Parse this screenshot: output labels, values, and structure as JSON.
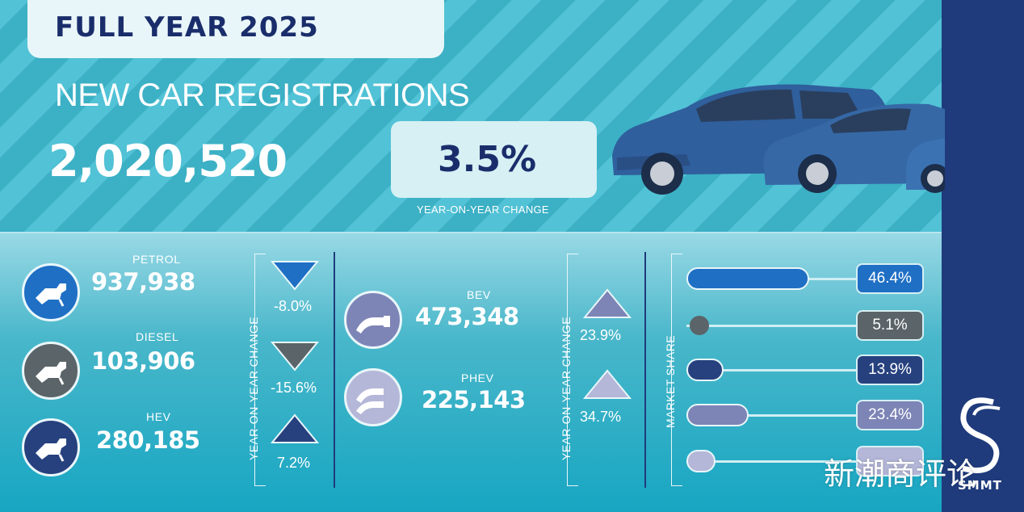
{
  "header": {
    "title": "FULL YEAR 2025",
    "subtitle": "NEW CAR REGISTRATIONS",
    "total": "2,020,520",
    "change": "3.5%",
    "change_caption": "YEAR-ON-YEAR CHANGE"
  },
  "fuel_left": [
    {
      "label": "PETROL",
      "value": "937,938",
      "change": "-8.0%",
      "direction": "down",
      "color": "#1f6fc4",
      "icon": "fuel-pump-icon"
    },
    {
      "label": "DIESEL",
      "value": "103,906",
      "change": "-15.6%",
      "direction": "down",
      "color": "#5b6468",
      "icon": "fuel-pump-icon"
    },
    {
      "label": "HEV",
      "value": "280,185",
      "change": "7.2%",
      "direction": "up",
      "color": "#27417f",
      "icon": "fuel-pump-icon"
    }
  ],
  "fuel_right": [
    {
      "label": "BEV",
      "value": "473,348",
      "change": "23.9%",
      "direction": "up",
      "color": "#7d84b6",
      "icon": "ev-plug-icon"
    },
    {
      "label": "PHEV",
      "value": "225,143",
      "change": "34.7%",
      "direction": "up",
      "color": "#b4b7d8",
      "icon": "hybrid-plug-icon"
    }
  ],
  "yoy_label": "YEAR-ON-YEAR CHANGE",
  "market_share_label": "MARKET SHARE",
  "market_share": [
    {
      "value": "46.4%",
      "share": 46.4,
      "color": "#1f6fc4"
    },
    {
      "value": "5.1%",
      "share": 5.1,
      "color": "#5b6468"
    },
    {
      "value": "13.9%",
      "share": 13.9,
      "color": "#27417f"
    },
    {
      "value": "23.4%",
      "share": 23.4,
      "color": "#7d84b6"
    },
    {
      "value": "",
      "share": 11.1,
      "color": "#b4b7d8"
    }
  ],
  "brand": {
    "name": "SMMT"
  },
  "watermark": "新潮商评论"
}
